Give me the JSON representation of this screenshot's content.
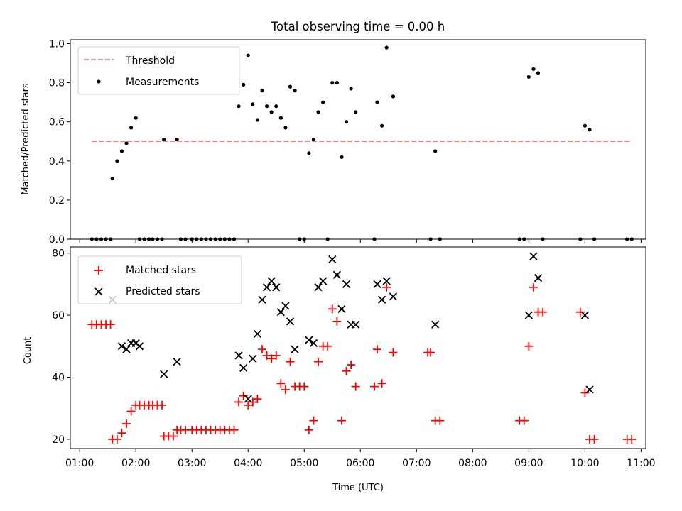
{
  "chart_data": [
    {
      "type": "scatter",
      "title": "Total observing time = 0.00 h",
      "xlabel": "",
      "ylabel": "Matched/Predicted stars",
      "xlim": [
        "00:50",
        "11:05"
      ],
      "ylim": [
        0,
        1.02
      ],
      "yticks": [
        "0.0",
        "0.2",
        "0.4",
        "0.6",
        "0.8",
        "1.0"
      ],
      "grid": false,
      "legend": "top-left",
      "threshold": {
        "name": "Threshold",
        "value": 0.5,
        "x_start": "01:13",
        "x_end": "10:50",
        "color": "#ff7f7f",
        "style": "dashed"
      },
      "series": [
        {
          "name": "Measurements",
          "color": "#000000",
          "marker": "dot",
          "points": [
            [
              "01:13",
              0
            ],
            [
              "01:18",
              0
            ],
            [
              "01:23",
              0
            ],
            [
              "01:28",
              0
            ],
            [
              "01:33",
              0
            ],
            [
              "01:35",
              0.31
            ],
            [
              "01:40",
              0.4
            ],
            [
              "01:45",
              0.45
            ],
            [
              "01:50",
              0.49
            ],
            [
              "01:55",
              0.57
            ],
            [
              "02:00",
              0.62
            ],
            [
              "02:04",
              0
            ],
            [
              "02:09",
              0
            ],
            [
              "02:14",
              0
            ],
            [
              "02:18",
              0
            ],
            [
              "02:23",
              0
            ],
            [
              "02:28",
              0
            ],
            [
              "02:30",
              0.51
            ],
            [
              "02:44",
              0.51
            ],
            [
              "02:48",
              0
            ],
            [
              "02:53",
              0
            ],
            [
              "03:00",
              0
            ],
            [
              "03:05",
              0
            ],
            [
              "03:10",
              0
            ],
            [
              "03:15",
              0
            ],
            [
              "03:20",
              0
            ],
            [
              "03:25",
              0
            ],
            [
              "03:30",
              0
            ],
            [
              "03:35",
              0
            ],
            [
              "03:40",
              0
            ],
            [
              "03:45",
              0
            ],
            [
              "03:50",
              0.68
            ],
            [
              "03:55",
              0.79
            ],
            [
              "04:00",
              0.94
            ],
            [
              "04:05",
              0.69
            ],
            [
              "04:10",
              0.61
            ],
            [
              "04:15",
              0.76
            ],
            [
              "04:20",
              0.68
            ],
            [
              "04:25",
              0.65
            ],
            [
              "04:30",
              0.68
            ],
            [
              "04:35",
              0.62
            ],
            [
              "04:40",
              0.57
            ],
            [
              "04:45",
              0.78
            ],
            [
              "04:50",
              0.76
            ],
            [
              "04:55",
              0
            ],
            [
              "05:00",
              0
            ],
            [
              "05:05",
              0.44
            ],
            [
              "05:10",
              0.51
            ],
            [
              "05:15",
              0.65
            ],
            [
              "05:20",
              0.7
            ],
            [
              "05:25",
              0
            ],
            [
              "05:30",
              0.8
            ],
            [
              "05:35",
              0.8
            ],
            [
              "05:40",
              0.42
            ],
            [
              "05:45",
              0.6
            ],
            [
              "05:50",
              0.77
            ],
            [
              "05:55",
              0.65
            ],
            [
              "06:15",
              0
            ],
            [
              "06:18",
              0.7
            ],
            [
              "06:23",
              0.58
            ],
            [
              "06:28",
              0.98
            ],
            [
              "06:35",
              0.73
            ],
            [
              "07:15",
              0
            ],
            [
              "07:20",
              0.45
            ],
            [
              "07:25",
              0
            ],
            [
              "08:50",
              0
            ],
            [
              "08:55",
              0
            ],
            [
              "09:00",
              0.83
            ],
            [
              "09:05",
              0.87
            ],
            [
              "09:10",
              0.85
            ],
            [
              "09:15",
              0
            ],
            [
              "09:55",
              0
            ],
            [
              "10:00",
              0.58
            ],
            [
              "10:05",
              0.56
            ],
            [
              "10:10",
              0
            ],
            [
              "10:45",
              0
            ],
            [
              "10:50",
              0
            ]
          ]
        }
      ]
    },
    {
      "type": "scatter",
      "title": "",
      "xlabel": "Time (UTC)",
      "ylabel": "Count",
      "xlim": [
        "00:50",
        "11:05"
      ],
      "ylim": [
        17,
        82
      ],
      "xticks": [
        "01:00",
        "02:00",
        "03:00",
        "04:00",
        "05:00",
        "06:00",
        "07:00",
        "08:00",
        "09:00",
        "10:00",
        "11:00"
      ],
      "yticks": [
        "20",
        "40",
        "60",
        "80"
      ],
      "grid": false,
      "legend": "top-left",
      "series": [
        {
          "name": "Matched stars",
          "color": "#ff0000",
          "marker": "plus",
          "points": [
            [
              "01:13",
              57
            ],
            [
              "01:18",
              57
            ],
            [
              "01:23",
              57
            ],
            [
              "01:28",
              57
            ],
            [
              "01:33",
              57
            ],
            [
              "01:35",
              20
            ],
            [
              "01:40",
              20
            ],
            [
              "01:45",
              22
            ],
            [
              "01:50",
              25
            ],
            [
              "01:55",
              29
            ],
            [
              "02:00",
              31
            ],
            [
              "02:04",
              31
            ],
            [
              "02:09",
              31
            ],
            [
              "02:14",
              31
            ],
            [
              "02:18",
              31
            ],
            [
              "02:23",
              31
            ],
            [
              "02:28",
              31
            ],
            [
              "02:30",
              21
            ],
            [
              "02:35",
              21
            ],
            [
              "02:40",
              21
            ],
            [
              "02:44",
              23
            ],
            [
              "02:48",
              23
            ],
            [
              "02:53",
              23
            ],
            [
              "03:00",
              23
            ],
            [
              "03:05",
              23
            ],
            [
              "03:10",
              23
            ],
            [
              "03:15",
              23
            ],
            [
              "03:20",
              23
            ],
            [
              "03:25",
              23
            ],
            [
              "03:30",
              23
            ],
            [
              "03:35",
              23
            ],
            [
              "03:40",
              23
            ],
            [
              "03:45",
              23
            ],
            [
              "03:50",
              32
            ],
            [
              "03:55",
              34
            ],
            [
              "04:00",
              31
            ],
            [
              "04:05",
              32
            ],
            [
              "04:10",
              33
            ],
            [
              "04:15",
              49
            ],
            [
              "04:20",
              47
            ],
            [
              "04:25",
              46
            ],
            [
              "04:30",
              47
            ],
            [
              "04:35",
              38
            ],
            [
              "04:40",
              36
            ],
            [
              "04:45",
              45
            ],
            [
              "04:50",
              37
            ],
            [
              "04:55",
              37
            ],
            [
              "05:00",
              37
            ],
            [
              "05:05",
              23
            ],
            [
              "05:10",
              26
            ],
            [
              "05:15",
              45
            ],
            [
              "05:20",
              50
            ],
            [
              "05:25",
              50
            ],
            [
              "05:30",
              62
            ],
            [
              "05:35",
              58
            ],
            [
              "05:40",
              26
            ],
            [
              "05:45",
              42
            ],
            [
              "05:50",
              44
            ],
            [
              "05:55",
              37
            ],
            [
              "06:15",
              37
            ],
            [
              "06:18",
              49
            ],
            [
              "06:23",
              38
            ],
            [
              "06:28",
              69
            ],
            [
              "06:35",
              48
            ],
            [
              "07:12",
              48
            ],
            [
              "07:15",
              48
            ],
            [
              "07:20",
              26
            ],
            [
              "07:25",
              26
            ],
            [
              "08:50",
              26
            ],
            [
              "08:55",
              26
            ],
            [
              "09:00",
              50
            ],
            [
              "09:05",
              69
            ],
            [
              "09:10",
              61
            ],
            [
              "09:15",
              61
            ],
            [
              "09:55",
              61
            ],
            [
              "10:00",
              35
            ],
            [
              "10:05",
              20
            ],
            [
              "10:10",
              20
            ],
            [
              "10:45",
              20
            ],
            [
              "10:50",
              20
            ]
          ]
        },
        {
          "name": "Predicted stars",
          "color": "#000000",
          "marker": "x",
          "points": [
            [
              "01:35",
              65
            ],
            [
              "01:45",
              50
            ],
            [
              "01:50",
              49
            ],
            [
              "01:55",
              51
            ],
            [
              "02:00",
              51
            ],
            [
              "02:04",
              50
            ],
            [
              "02:30",
              41
            ],
            [
              "02:44",
              45
            ],
            [
              "03:50",
              47
            ],
            [
              "03:55",
              43
            ],
            [
              "04:00",
              33
            ],
            [
              "04:05",
              46
            ],
            [
              "04:10",
              54
            ],
            [
              "04:15",
              65
            ],
            [
              "04:20",
              69
            ],
            [
              "04:25",
              71
            ],
            [
              "04:30",
              69
            ],
            [
              "04:35",
              61
            ],
            [
              "04:40",
              63
            ],
            [
              "04:45",
              58
            ],
            [
              "04:50",
              49
            ],
            [
              "05:05",
              52
            ],
            [
              "05:10",
              51
            ],
            [
              "05:15",
              69
            ],
            [
              "05:20",
              71
            ],
            [
              "05:30",
              78
            ],
            [
              "05:35",
              73
            ],
            [
              "05:40",
              62
            ],
            [
              "05:45",
              70
            ],
            [
              "05:50",
              57
            ],
            [
              "05:55",
              57
            ],
            [
              "06:18",
              70
            ],
            [
              "06:23",
              65
            ],
            [
              "06:28",
              71
            ],
            [
              "06:35",
              66
            ],
            [
              "07:20",
              57
            ],
            [
              "09:00",
              60
            ],
            [
              "09:05",
              79
            ],
            [
              "09:10",
              72
            ],
            [
              "10:00",
              60
            ],
            [
              "10:05",
              36
            ]
          ]
        }
      ]
    }
  ]
}
